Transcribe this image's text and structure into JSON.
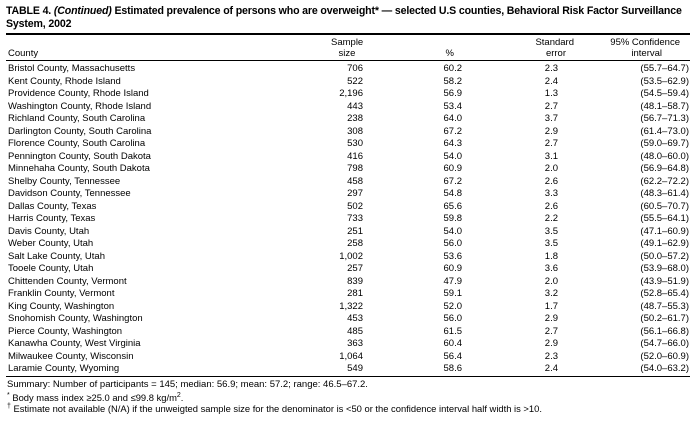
{
  "colors": {
    "text": "#000000",
    "background": "#ffffff",
    "rules": "#000000"
  },
  "title": {
    "label": "TABLE 4.",
    "continued": " (Continued)",
    "rest": " Estimated prevalence of persons who are overweight* — selected U.S counties, Behavioral Risk Factor Surveillance System, 2002"
  },
  "table": {
    "header": {
      "county": "County",
      "sample_line1": "Sample",
      "sample_line2": "size",
      "percent": "%",
      "se_line1": "Standard",
      "se_line2": "error",
      "ci_line1": "95% Confidence",
      "ci_line2": "interval"
    },
    "rows": [
      {
        "county": "Bristol County, Massachusetts",
        "sample": "706",
        "percent": "60.2",
        "se": "2.3",
        "ci": "(55.7–64.7)"
      },
      {
        "county": "Kent County, Rhode Island",
        "sample": "522",
        "percent": "58.2",
        "se": "2.4",
        "ci": "(53.5–62.9)"
      },
      {
        "county": "Providence County, Rhode Island",
        "sample": "2,196",
        "percent": "56.9",
        "se": "1.3",
        "ci": "(54.5–59.4)"
      },
      {
        "county": "Washington County, Rhode Island",
        "sample": "443",
        "percent": "53.4",
        "se": "2.7",
        "ci": "(48.1–58.7)"
      },
      {
        "county": "Richland County, South Carolina",
        "sample": "238",
        "percent": "64.0",
        "se": "3.7",
        "ci": "(56.7–71.3)"
      },
      {
        "county": "Darlington County, South Carolina",
        "sample": "308",
        "percent": "67.2",
        "se": "2.9",
        "ci": "(61.4–73.0)"
      },
      {
        "county": "Florence County, South Carolina",
        "sample": "530",
        "percent": "64.3",
        "se": "2.7",
        "ci": "(59.0–69.7)"
      },
      {
        "county": "Pennington County, South Dakota",
        "sample": "416",
        "percent": "54.0",
        "se": "3.1",
        "ci": "(48.0–60.0)"
      },
      {
        "county": "Minnehaha County, South Dakota",
        "sample": "798",
        "percent": "60.9",
        "se": "2.0",
        "ci": "(56.9–64.8)"
      },
      {
        "county": "Shelby County, Tennessee",
        "sample": "458",
        "percent": "67.2",
        "se": "2.6",
        "ci": "(62.2–72.2)"
      },
      {
        "county": "Davidson County, Tennessee",
        "sample": "297",
        "percent": "54.8",
        "se": "3.3",
        "ci": "(48.3–61.4)"
      },
      {
        "county": "Dallas County, Texas",
        "sample": "502",
        "percent": "65.6",
        "se": "2.6",
        "ci": "(60.5–70.7)"
      },
      {
        "county": "Harris County, Texas",
        "sample": "733",
        "percent": "59.8",
        "se": "2.2",
        "ci": "(55.5–64.1)"
      },
      {
        "county": "Davis County, Utah",
        "sample": "251",
        "percent": "54.0",
        "se": "3.5",
        "ci": "(47.1–60.9)"
      },
      {
        "county": "Weber County, Utah",
        "sample": "258",
        "percent": "56.0",
        "se": "3.5",
        "ci": "(49.1–62.9)"
      },
      {
        "county": "Salt Lake County, Utah",
        "sample": "1,002",
        "percent": "53.6",
        "se": "1.8",
        "ci": "(50.0–57.2)"
      },
      {
        "county": "Tooele County, Utah",
        "sample": "257",
        "percent": "60.9",
        "se": "3.6",
        "ci": "(53.9–68.0)"
      },
      {
        "county": "Chittenden County, Vermont",
        "sample": "839",
        "percent": "47.9",
        "se": "2.0",
        "ci": "(43.9–51.9)"
      },
      {
        "county": "Franklin County, Vermont",
        "sample": "281",
        "percent": "59.1",
        "se": "3.2",
        "ci": "(52.8–65.4)"
      },
      {
        "county": "King County, Washington",
        "sample": "1,322",
        "percent": "52.0",
        "se": "1.7",
        "ci": "(48.7–55.3)"
      },
      {
        "county": "Snohomish County, Washington",
        "sample": "453",
        "percent": "56.0",
        "se": "2.9",
        "ci": "(50.2–61.7)"
      },
      {
        "county": "Pierce County, Washington",
        "sample": "485",
        "percent": "61.5",
        "se": "2.7",
        "ci": "(56.1–66.8)"
      },
      {
        "county": "Kanawha County, West Virginia",
        "sample": "363",
        "percent": "60.4",
        "se": "2.9",
        "ci": "(54.7–66.0)"
      },
      {
        "county": "Milwaukee County, Wisconsin",
        "sample": "1,064",
        "percent": "56.4",
        "se": "2.3",
        "ci": "(52.0–60.9)"
      },
      {
        "county": "Laramie County, Wyoming",
        "sample": "549",
        "percent": "58.6",
        "se": "2.4",
        "ci": "(54.0–63.2)"
      }
    ]
  },
  "footer": {
    "summary": "Summary: Number of participants = 145; median: 56.9; mean: 57.2; range: 46.5–67.2.",
    "note_star": {
      "marker": "*",
      "text": " Body mass index ≥25.0 and ≤99.8 kg/m",
      "sup": "2",
      "tail": "."
    },
    "note_dagger": {
      "marker": "†",
      "text": " Estimate not available (N/A) if the unweigted sample size for the denominator is <50 or the confidence interval half width is >10."
    }
  }
}
